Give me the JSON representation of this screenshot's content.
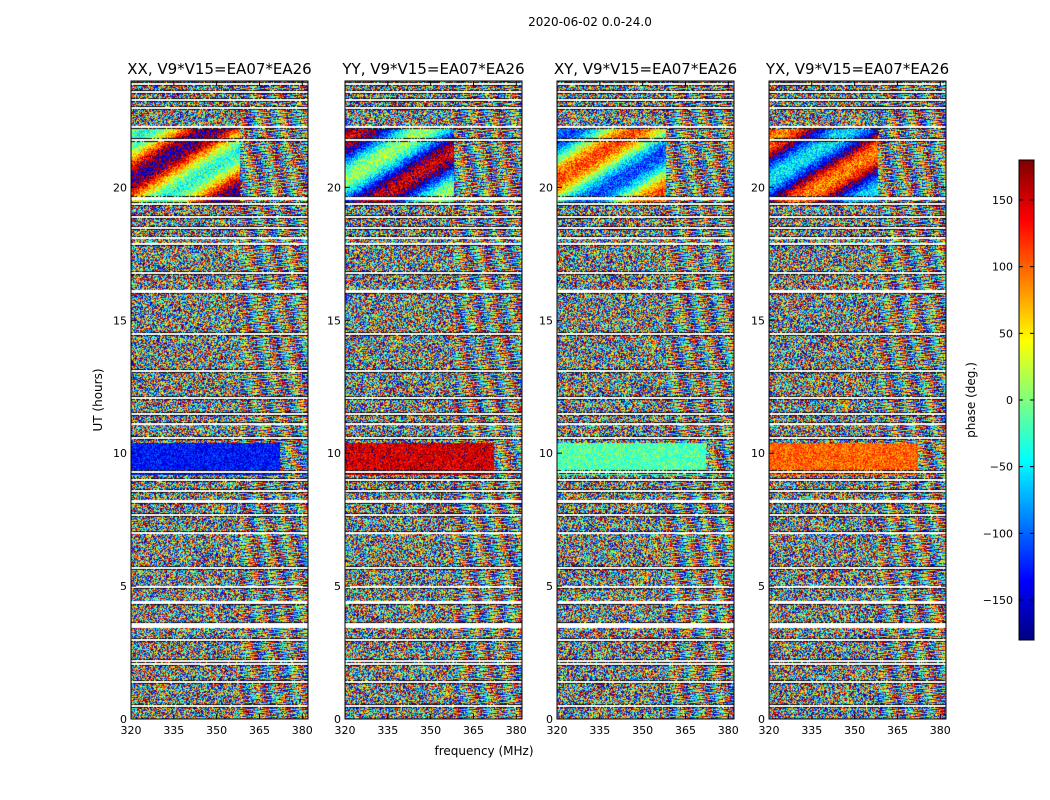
{
  "chart_data": {
    "type": "heatmap",
    "suptitle": "2020-06-02 0.0-24.0",
    "xlabel": "frequency (MHz)",
    "ylabel": "UT (hours)",
    "xlim": [
      320,
      382
    ],
    "ylim": [
      0,
      24
    ],
    "xticks": [
      "320",
      "335",
      "350",
      "365",
      "380"
    ],
    "yticks": [
      "0",
      "5",
      "10",
      "15",
      "20"
    ],
    "panels": [
      {
        "title": "XX, V9*V15=EA07*EA26",
        "coherent_phase": -130,
        "upper_phase": 80
      },
      {
        "title": "YY, V9*V15=EA07*EA26",
        "coherent_phase": 150,
        "upper_phase": -100
      },
      {
        "title": "XY, V9*V15=EA07*EA26",
        "coherent_phase": -15,
        "upper_phase": 0
      },
      {
        "title": "YX, V9*V15=EA07*EA26",
        "coherent_phase": 100,
        "upper_phase": -160
      }
    ],
    "colorbar": {
      "label": "phase (deg.)",
      "colormap": "jet",
      "range": [
        -180,
        180
      ],
      "ticks": [
        "150",
        "100",
        "50",
        "0",
        "−50",
        "−100",
        "−150"
      ],
      "tick_values": [
        150,
        100,
        50,
        0,
        -50,
        -100,
        -150
      ]
    },
    "flagged_hours": [
      0.5,
      1.4,
      2.1,
      2.2,
      3.0,
      3.5,
      3.6,
      4.4,
      5.0,
      5.7,
      7.0,
      7.7,
      8.2,
      8.6,
      9.0,
      9.3,
      10.6,
      11.1,
      11.5,
      12.1,
      13.1,
      14.5,
      16.1,
      16.8,
      17.9,
      18.1,
      18.5,
      18.9,
      19.4,
      19.6,
      21.8,
      22.3,
      23.0,
      23.3,
      23.6,
      23.9
    ]
  }
}
